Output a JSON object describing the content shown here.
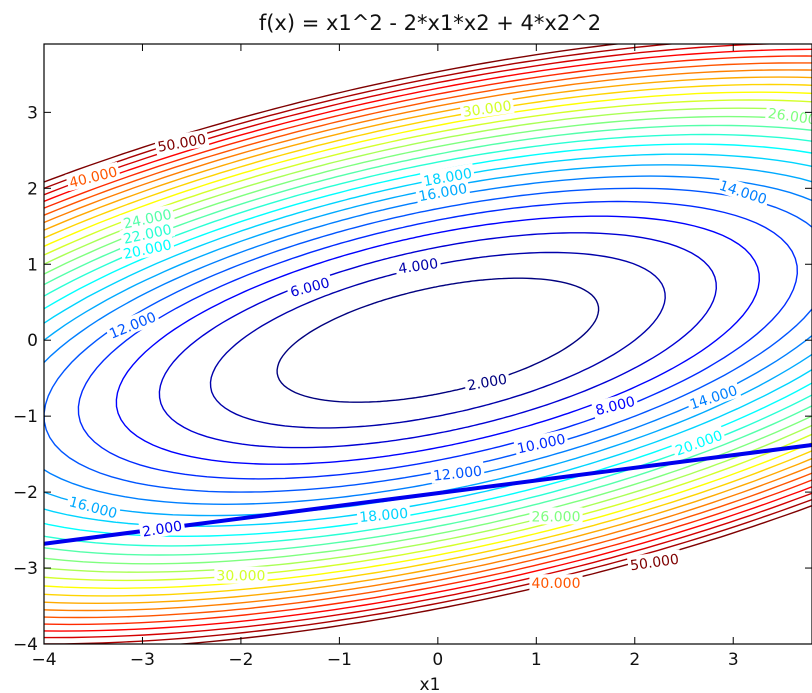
{
  "chart_data": {
    "type": "contour",
    "title": "f(x) = x1^2 - 2*x1*x2 + 4*x2^2",
    "xlabel": "x1",
    "ylabel": "",
    "xlim": [
      -4,
      3.8
    ],
    "ylim": [
      -4,
      3.9
    ],
    "xticks": [
      "−4",
      "−3",
      "−2",
      "−1",
      "0",
      "1",
      "2",
      "3"
    ],
    "yticks": [
      "−4",
      "−3",
      "−2",
      "−1",
      "0",
      "1",
      "2",
      "3"
    ],
    "function": {
      "a": 1,
      "b": -2,
      "c": 4
    },
    "levels": [
      2,
      4,
      6,
      8,
      10,
      12,
      14,
      16,
      18,
      20,
      22,
      24,
      26,
      28,
      30,
      32,
      34,
      36,
      38,
      40,
      42,
      44,
      46,
      48,
      50
    ],
    "colormap": [
      "#00007f",
      "#0000ff",
      "#007fff",
      "#00ffff",
      "#7fff7f",
      "#ffff00",
      "#ff7f00",
      "#ff0000",
      "#7f0000"
    ],
    "constraint_line": {
      "color": "#0000ee",
      "points": [
        [
          -4,
          -2.68
        ],
        [
          3.8,
          -1.38
        ]
      ],
      "label": "2.000"
    },
    "contour_labels": [
      {
        "text": "2.000",
        "x": 0.5,
        "y": -0.55,
        "level": 2,
        "rot": -10
      },
      {
        "text": "4.000",
        "x": -0.2,
        "y": 0.98,
        "level": 4,
        "rot": -8
      },
      {
        "text": "6.000",
        "x": -1.3,
        "y": 0.7,
        "level": 6,
        "rot": -15
      },
      {
        "text": "8.000",
        "x": 1.8,
        "y": -0.86,
        "level": 8,
        "rot": -14
      },
      {
        "text": "10.000",
        "x": 1.05,
        "y": -1.36,
        "level": 10,
        "rot": -12
      },
      {
        "text": "12.000",
        "x": -3.1,
        "y": 0.2,
        "level": 12,
        "rot": -22
      },
      {
        "text": "12.000",
        "x": 0.2,
        "y": -1.75,
        "level": 12,
        "rot": -6
      },
      {
        "text": "14.000",
        "x": 3.1,
        "y": 1.95,
        "level": 14,
        "rot": 18
      },
      {
        "text": "14.000",
        "x": 2.8,
        "y": -0.75,
        "level": 14,
        "rot": -18
      },
      {
        "text": "16.000",
        "x": 0.05,
        "y": 1.95,
        "level": 16,
        "rot": -10
      },
      {
        "text": "16.000",
        "x": -3.5,
        "y": -2.2,
        "level": 16,
        "rot": 15
      },
      {
        "text": "18.000",
        "x": 0.1,
        "y": 2.15,
        "level": 18,
        "rot": -10
      },
      {
        "text": "18.000",
        "x": -0.55,
        "y": -2.3,
        "level": 18,
        "rot": -5
      },
      {
        "text": "20.000",
        "x": -2.95,
        "y": 1.2,
        "level": 20,
        "rot": -12
      },
      {
        "text": "20.000",
        "x": 2.65,
        "y": -1.35,
        "level": 20,
        "rot": -20
      },
      {
        "text": "22.000",
        "x": -2.95,
        "y": 1.4,
        "level": 22,
        "rot": -12
      },
      {
        "text": "24.000",
        "x": -2.95,
        "y": 1.6,
        "level": 24,
        "rot": -12
      },
      {
        "text": "26.000",
        "x": 3.6,
        "y": 2.95,
        "level": 26,
        "rot": 8
      },
      {
        "text": "26.000",
        "x": 1.2,
        "y": -2.32,
        "level": 26,
        "rot": 0
      },
      {
        "text": "30.000",
        "x": 0.5,
        "y": 3.05,
        "level": 30,
        "rot": -8
      },
      {
        "text": "30.000",
        "x": -2.0,
        "y": -3.1,
        "level": 30,
        "rot": 0
      },
      {
        "text": "40.000",
        "x": -3.5,
        "y": 2.15,
        "level": 40,
        "rot": -14
      },
      {
        "text": "40.000",
        "x": 1.2,
        "y": -3.2,
        "level": 40,
        "rot": 0
      },
      {
        "text": "50.000",
        "x": -2.6,
        "y": 2.6,
        "level": 50,
        "rot": -10
      },
      {
        "text": "50.000",
        "x": 2.2,
        "y": -2.92,
        "level": 50,
        "rot": -8
      }
    ]
  }
}
